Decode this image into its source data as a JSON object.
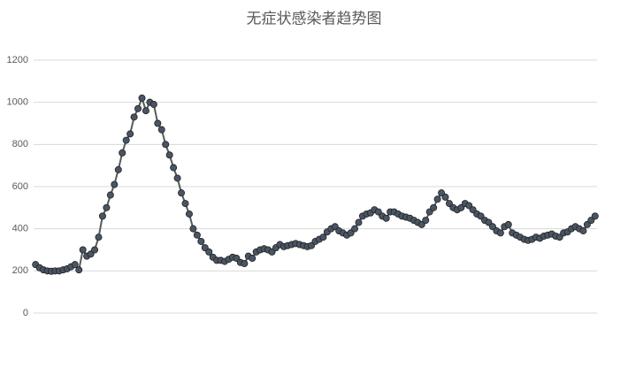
{
  "chart_data": {
    "type": "line",
    "title": "无症状感染者趋势图",
    "categories": [
      null,
      null,
      null,
      null,
      null,
      null,
      null,
      null,
      null,
      null,
      null,
      null,
      null,
      null,
      null,
      null,
      null,
      null,
      null,
      null,
      null,
      null,
      null,
      null,
      null,
      null,
      null,
      null,
      null,
      null,
      null,
      null,
      null,
      null,
      null,
      null,
      null,
      null,
      null,
      null,
      null,
      null,
      null,
      null,
      null,
      null,
      null,
      null,
      null,
      null,
      null,
      null,
      null,
      null,
      null,
      null,
      null,
      null,
      null,
      null,
      null,
      null,
      null,
      null,
      null,
      null,
      null,
      null,
      null,
      null,
      null,
      null,
      null,
      null,
      null,
      null,
      null,
      null,
      null,
      null,
      null,
      null,
      null,
      null,
      null,
      null,
      null,
      null,
      null,
      null,
      null,
      null,
      null,
      null,
      null,
      null,
      null,
      null,
      null,
      null,
      null,
      null,
      null,
      null,
      null,
      null,
      null,
      null,
      null,
      null,
      null,
      null,
      null,
      null,
      null,
      null,
      null,
      null,
      null,
      null,
      null,
      null,
      null,
      null,
      null,
      null,
      null,
      null,
      null,
      null,
      null,
      null,
      null,
      null,
      null,
      null,
      null,
      null,
      null,
      null,
      null,
      null,
      null
    ],
    "series": [
      {
        "color": "#4a5564",
        "values": [
          230,
          215,
          205,
          200,
          198,
          200,
          200,
          205,
          210,
          220,
          230,
          205,
          300,
          270,
          280,
          300,
          360,
          460,
          500,
          560,
          610,
          680,
          760,
          820,
          850,
          930,
          970,
          1020,
          960,
          1000,
          990,
          900,
          870,
          800,
          750,
          690,
          640,
          570,
          520,
          470,
          400,
          370,
          340,
          310,
          290,
          265,
          250,
          250,
          245,
          255,
          265,
          260,
          240,
          235,
          270,
          260,
          290,
          300,
          305,
          300,
          290,
          310,
          325,
          315,
          320,
          325,
          330,
          325,
          320,
          315,
          320,
          340,
          350,
          360,
          385,
          400,
          410,
          390,
          380,
          370,
          380,
          400,
          430,
          460,
          470,
          475,
          490,
          480,
          460,
          450,
          480,
          480,
          470,
          460,
          455,
          450,
          440,
          430,
          420,
          440,
          480,
          500,
          540,
          570,
          550,
          520,
          500,
          490,
          500,
          520,
          510,
          490,
          470,
          460,
          440,
          430,
          410,
          390,
          380,
          410,
          420,
          380,
          370,
          360,
          350,
          345,
          350,
          360,
          355,
          365,
          370,
          375,
          365,
          360,
          380,
          385,
          400,
          410,
          400,
          390,
          420,
          440,
          460
        ]
      }
    ],
    "ylim": [
      0,
      1200
    ],
    "yticks": [
      0,
      200,
      400,
      600,
      800,
      1000,
      1200
    ],
    "grid": true
  }
}
